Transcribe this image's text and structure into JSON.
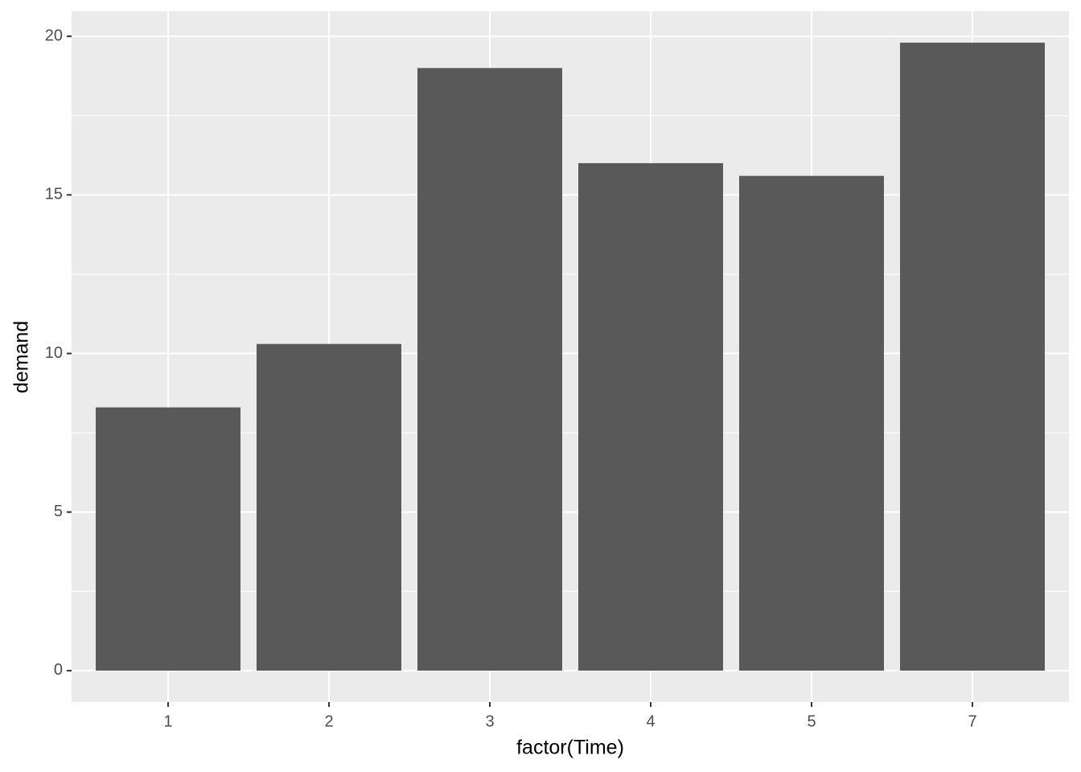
{
  "chart_data": {
    "type": "bar",
    "x_label": "factor(Time)",
    "y_label": "demand",
    "categories": [
      "1",
      "2",
      "3",
      "4",
      "5",
      "7"
    ],
    "values": [
      8.3,
      10.3,
      19.0,
      16.0,
      15.6,
      19.8
    ],
    "color": "#595959",
    "ylim": [
      -0.99,
      20.79
    ],
    "yticks": [
      0,
      5,
      10,
      15,
      20
    ],
    "grid": true,
    "minor_grid": true,
    "panel_color": "#ebebeb"
  }
}
